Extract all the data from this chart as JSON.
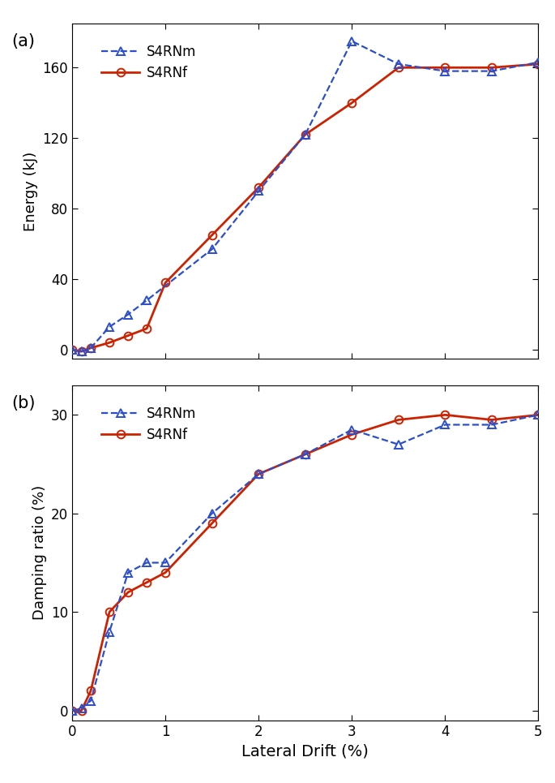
{
  "energy_x_Nm": [
    0.0,
    0.1,
    0.2,
    0.4,
    0.6,
    0.8,
    1.5,
    2.0,
    2.5,
    3.0,
    3.5,
    4.0,
    4.5,
    5.0
  ],
  "energy_y_Nm": [
    0,
    -1,
    1,
    13,
    20,
    28,
    57,
    90,
    122,
    175,
    162,
    158,
    158,
    163
  ],
  "energy_x_Nf": [
    0.0,
    0.1,
    0.2,
    0.4,
    0.6,
    0.8,
    1.0,
    1.5,
    2.0,
    2.5,
    3.0,
    3.5,
    4.0,
    4.5,
    5.0
  ],
  "energy_y_Nf": [
    0,
    -1,
    1,
    4,
    8,
    12,
    38,
    65,
    92,
    122,
    140,
    160,
    160,
    160,
    162
  ],
  "damp_x_Nm": [
    0.0,
    0.1,
    0.2,
    0.4,
    0.6,
    0.8,
    1.0,
    1.5,
    2.0,
    2.5,
    3.0,
    3.5,
    4.0,
    4.5,
    5.0
  ],
  "damp_y_Nm": [
    0,
    0.2,
    1,
    8,
    14,
    15,
    15,
    20,
    24,
    26,
    28.5,
    27,
    29,
    29,
    30
  ],
  "damp_x_Nf": [
    0.0,
    0.1,
    0.2,
    0.4,
    0.6,
    0.8,
    1.0,
    1.5,
    2.0,
    2.5,
    3.0,
    3.5,
    4.0,
    4.5,
    5.0
  ],
  "damp_y_Nf": [
    0,
    0,
    2,
    10,
    12,
    13,
    14,
    19,
    24,
    26,
    28,
    29.5,
    30,
    29.5,
    30
  ],
  "color_Nm": "#2b4fcc",
  "color_Nf": "#cc2200",
  "label_Nm": "S4RNm",
  "label_Nf": "S4RNf",
  "title_a": "(a)",
  "title_b": "(b)",
  "ylabel_a": "Energy (kJ)",
  "ylabel_b": "Damping ratio (%)",
  "xlabel": "Lateral Drift (%)",
  "xlim": [
    0,
    5
  ],
  "energy_ylim": [
    -5,
    185
  ],
  "damp_ylim": [
    -1,
    33
  ],
  "energy_yticks": [
    0,
    40,
    80,
    120,
    160
  ],
  "damp_yticks": [
    0,
    10,
    20,
    30
  ],
  "xticks": [
    0,
    1,
    2,
    3,
    4,
    5
  ]
}
